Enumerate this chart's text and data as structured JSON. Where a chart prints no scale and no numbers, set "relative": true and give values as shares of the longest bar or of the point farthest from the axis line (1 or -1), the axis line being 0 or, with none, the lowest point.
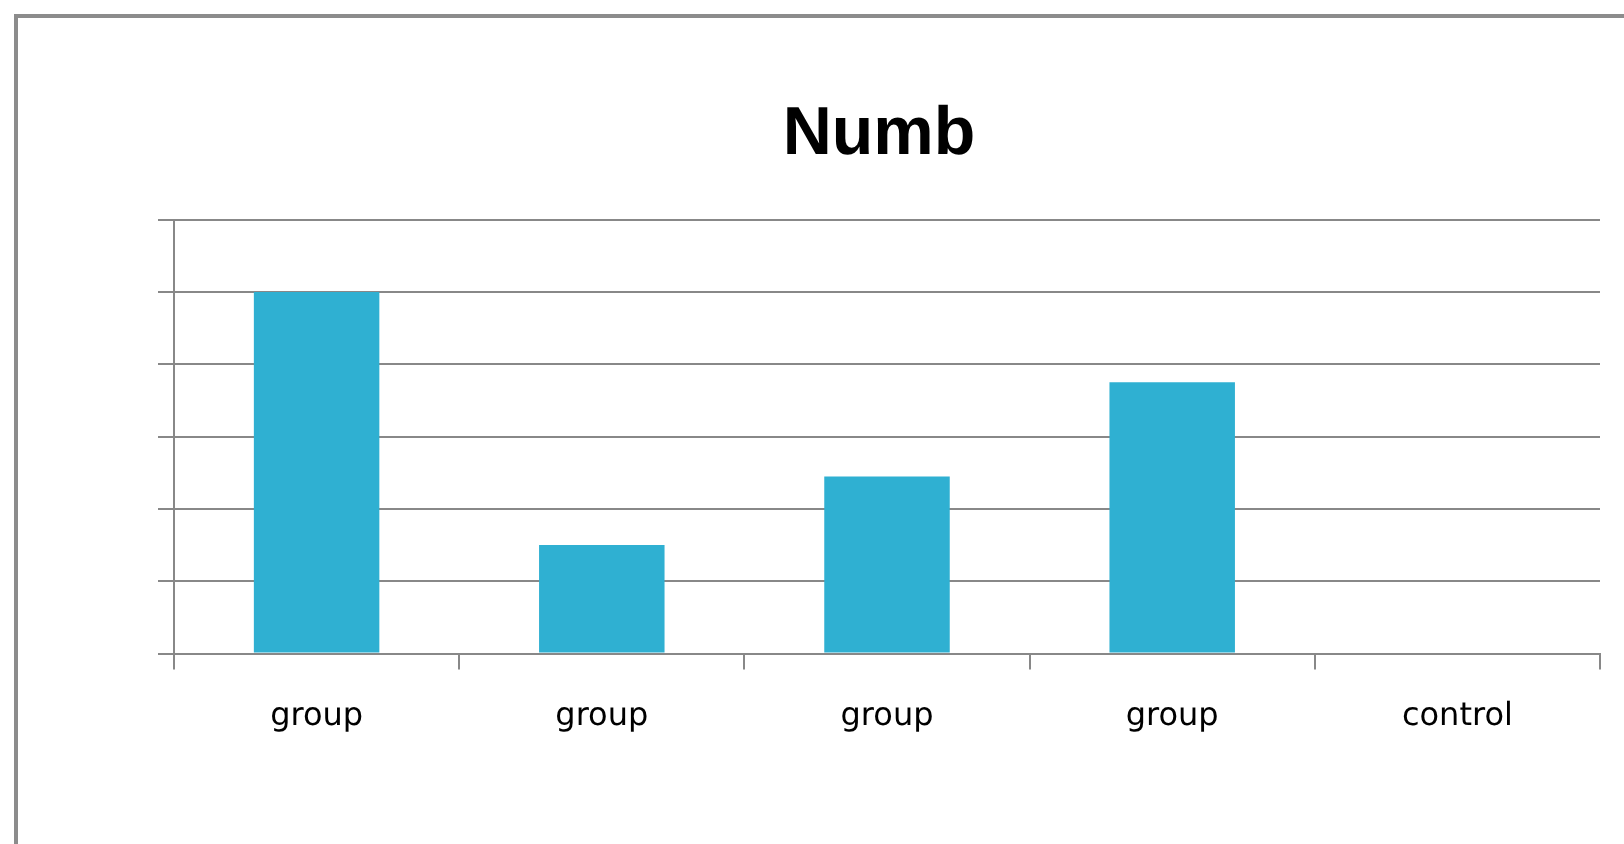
{
  "chart_data": {
    "type": "bar",
    "title": "Numb",
    "categories": [
      "group",
      "group",
      "group",
      "group",
      "control"
    ],
    "values": [
      1,
      0.3,
      0.49,
      0.75,
      0
    ],
    "color": "#2fb0d2",
    "relative": true,
    "grid": "y",
    "legend": false
  }
}
